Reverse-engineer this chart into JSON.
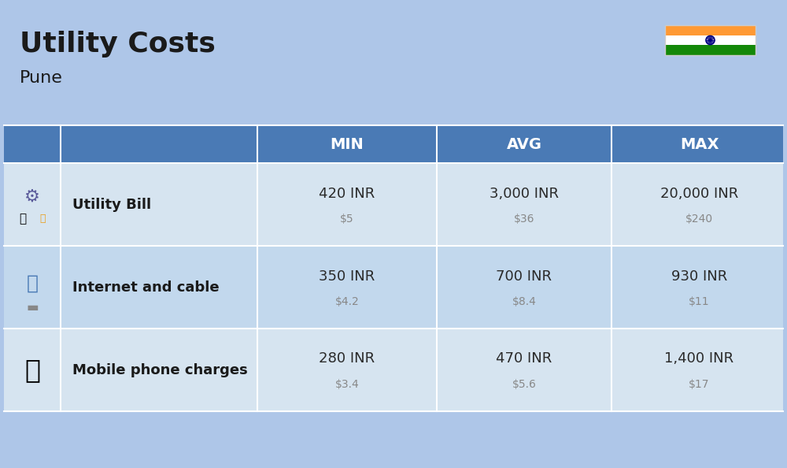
{
  "title": "Utility Costs",
  "subtitle": "Pune",
  "background_color": "#aec6e8",
  "header_bg_color": "#4a7ab5",
  "header_text_color": "#ffffff",
  "row_bg_color_1": "#d6e4f0",
  "row_bg_color_2": "#c2d8ed",
  "col_header_labels": [
    "MIN",
    "AVG",
    "MAX"
  ],
  "rows": [
    {
      "label": "Utility Bill",
      "min_inr": "420 INR",
      "min_usd": "$5",
      "avg_inr": "3,000 INR",
      "avg_usd": "$36",
      "max_inr": "20,000 INR",
      "max_usd": "$240"
    },
    {
      "label": "Internet and cable",
      "min_inr": "350 INR",
      "min_usd": "$4.2",
      "avg_inr": "700 INR",
      "avg_usd": "$8.4",
      "max_inr": "930 INR",
      "max_usd": "$11"
    },
    {
      "label": "Mobile phone charges",
      "min_inr": "280 INR",
      "min_usd": "$3.4",
      "avg_inr": "470 INR",
      "avg_usd": "$5.6",
      "max_inr": "1,400 INR",
      "max_usd": "$17"
    }
  ],
  "flag_colors": [
    "#FF9933",
    "#ffffff",
    "#138808"
  ],
  "flag_emblem_color": "#000080",
  "icon_color": "#4a7ab5",
  "usd_text_color": "#888888",
  "label_text_color": "#1a1a1a",
  "value_text_color": "#2a2a2a"
}
